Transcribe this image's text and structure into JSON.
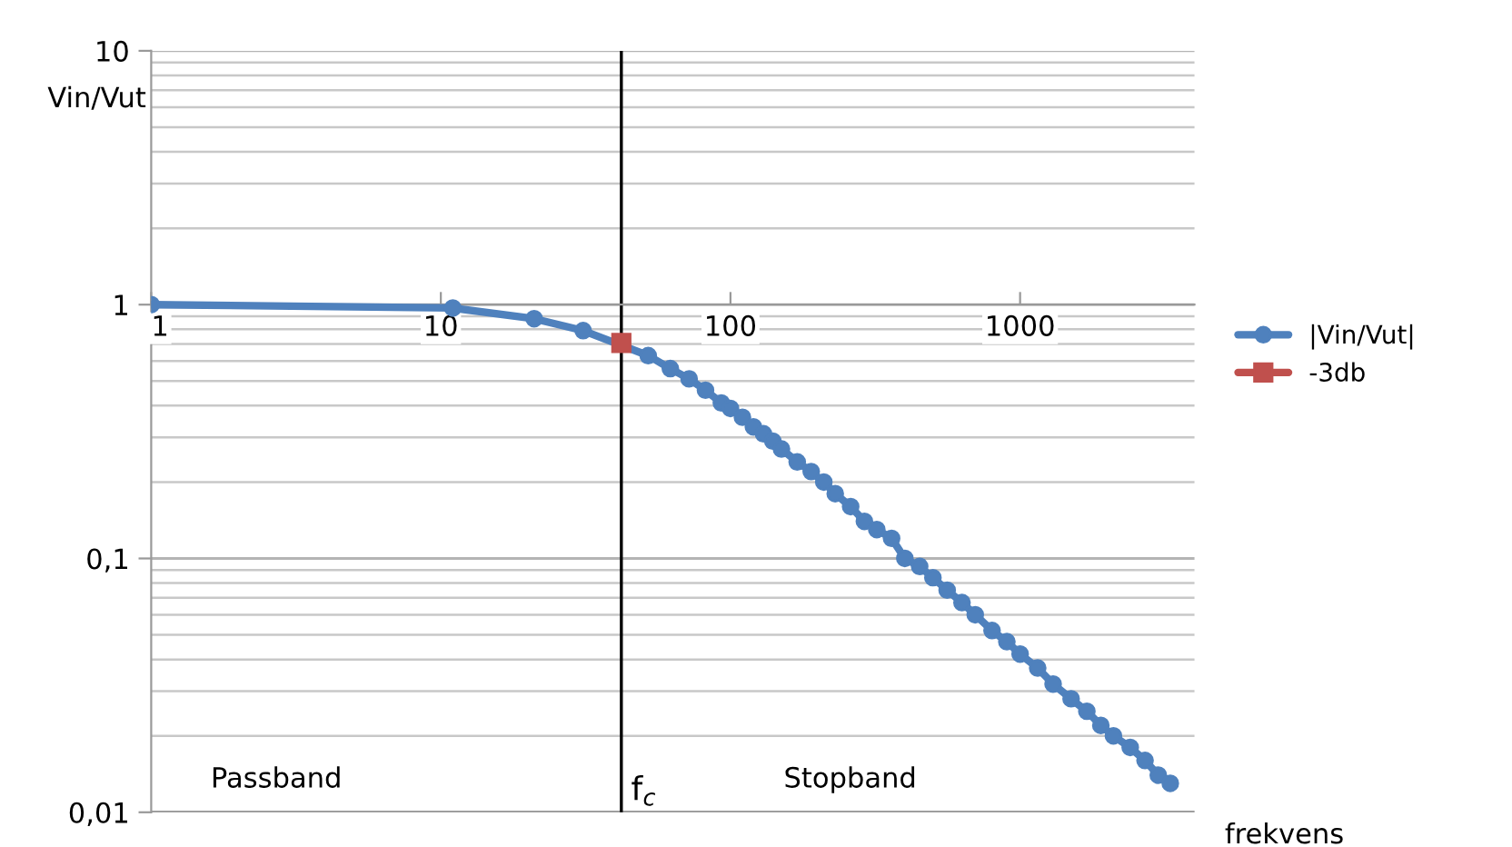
{
  "chart_data": {
    "type": "line",
    "ylabel": "Vin/Vut",
    "xlabel": "frekvens",
    "log": "xy",
    "xlim": [
      1,
      4000
    ],
    "xticks": [
      1,
      10,
      100,
      1000
    ],
    "ylim": [
      0.01,
      10
    ],
    "yticks": [
      {
        "value": 0.01,
        "label": "0,01"
      },
      {
        "value": 0.1,
        "label": "0,1"
      },
      1,
      10
    ],
    "grid": "y",
    "legend": "right",
    "line_style": "solid",
    "series": [
      {
        "name": "|Vin/Vut|",
        "color": "#4f81bd",
        "marker": "circle",
        "x": [
          1,
          11,
          21,
          31,
          52,
          62,
          72,
          82,
          93,
          100,
          110,
          120,
          130,
          140,
          150,
          170,
          190,
          210,
          230,
          260,
          290,
          320,
          360,
          400,
          450,
          500,
          560,
          630,
          700,
          800,
          900,
          1000,
          1150,
          1300,
          1500,
          1700,
          1900,
          2100,
          2400,
          2700,
          3000,
          3300
        ],
        "values": [
          1,
          0.97,
          0.88,
          0.79,
          0.63,
          0.56,
          0.51,
          0.46,
          0.41,
          0.39,
          0.36,
          0.33,
          0.31,
          0.29,
          0.27,
          0.24,
          0.22,
          0.2,
          0.18,
          0.16,
          0.14,
          0.13,
          0.12,
          0.1,
          0.093,
          0.084,
          0.075,
          0.067,
          0.06,
          0.052,
          0.047,
          0.042,
          0.037,
          0.032,
          0.028,
          0.025,
          0.022,
          0.02,
          0.018,
          0.016,
          0.014,
          0.013
        ]
      },
      {
        "name": "-3db",
        "color": "#c0504d",
        "marker": "square",
        "x": [
          42
        ],
        "values": [
          0.707
        ]
      }
    ],
    "ref_lines": [
      {
        "axis": "x",
        "value": 42,
        "label": "f$_{c}$",
        "color": "#000000"
      }
    ],
    "annotations": [
      "Passband",
      "Stopband"
    ]
  }
}
